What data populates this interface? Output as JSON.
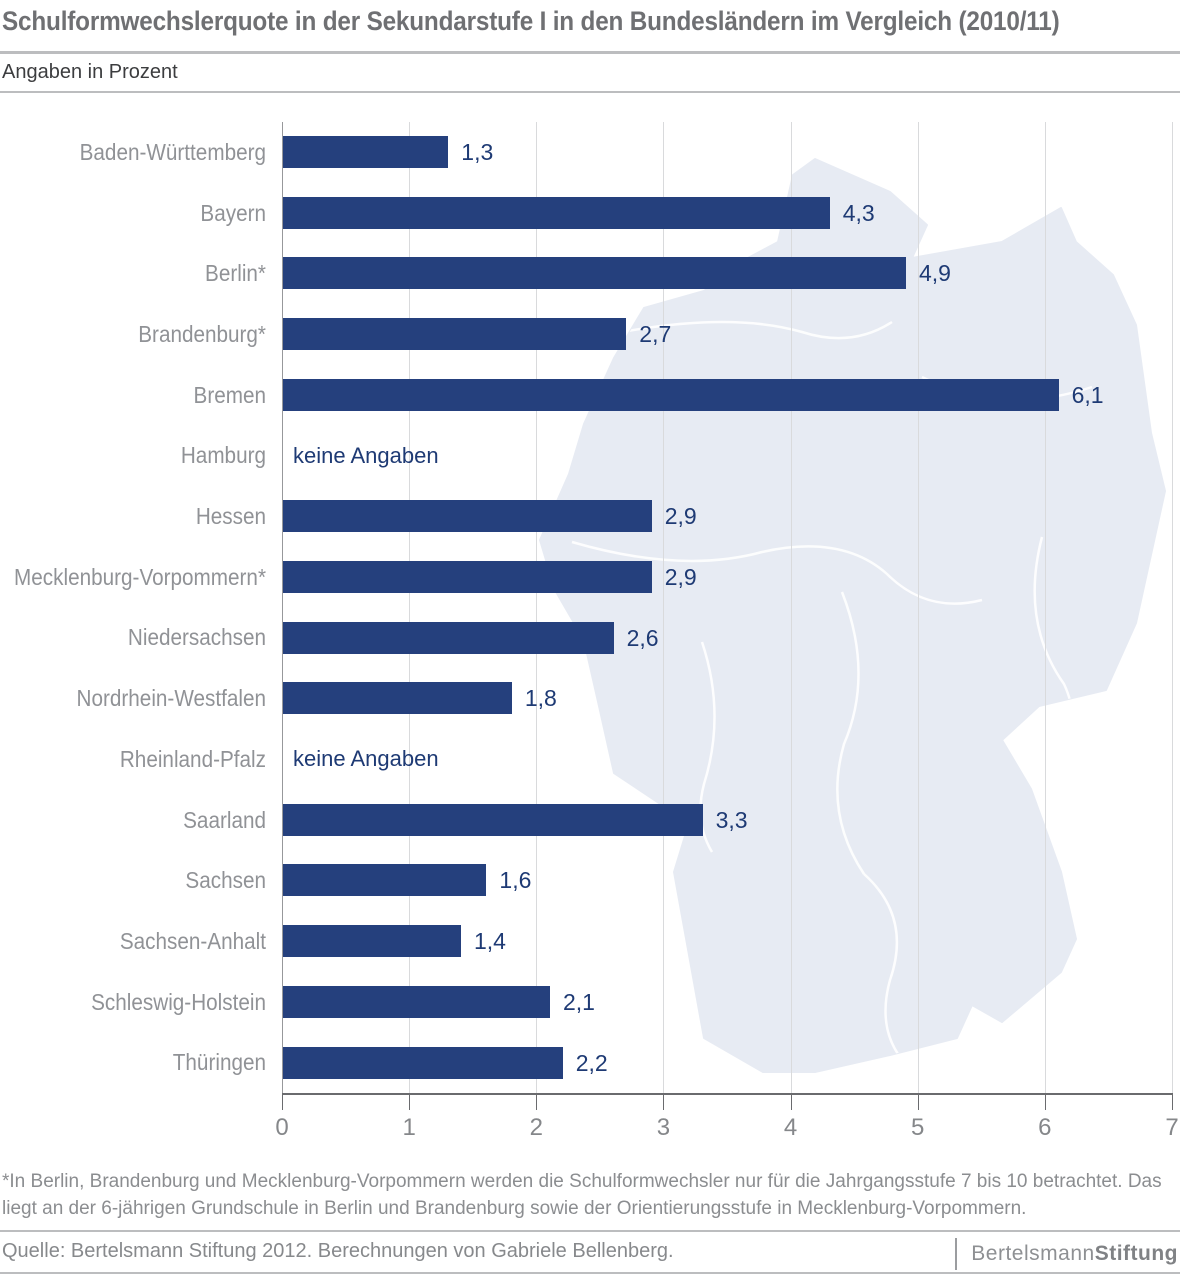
{
  "header": {
    "title": "Schulformwechslerquote in der Sekundarstufe I in den Bundesländern im Vergleich (2010/11)",
    "subtitle": "Angaben in Prozent"
  },
  "chart_data": {
    "type": "bar",
    "orientation": "horizontal",
    "title": "Schulformwechslerquote in der Sekundarstufe I in den Bundesländern im Vergleich (2010/11)",
    "units": "Prozent",
    "categories": [
      "Baden-Württemberg",
      "Bayern",
      "Berlin*",
      "Brandenburg*",
      "Bremen",
      "Hamburg",
      "Hessen",
      "Mecklenburg-Vorpommern*",
      "Niedersachsen",
      "Nordrhein-Westfalen",
      "Rheinland-Pfalz",
      "Saarland",
      "Sachsen",
      "Sachsen-Anhalt",
      "Schleswig-Holstein",
      "Thüringen"
    ],
    "values": [
      1.3,
      4.3,
      4.9,
      2.7,
      6.1,
      null,
      2.9,
      2.9,
      2.6,
      1.8,
      null,
      3.3,
      1.6,
      1.4,
      2.1,
      2.2
    ],
    "value_labels": [
      "1,3",
      "4,3",
      "4,9",
      "2,7",
      "6,1",
      "keine Angaben",
      "2,9",
      "2,9",
      "2,6",
      "1,8",
      "keine Angaben",
      "3,3",
      "1,6",
      "1,4",
      "2,1",
      "2,2"
    ],
    "no_data_label": "keine Angaben",
    "xlim": [
      0,
      7
    ],
    "x_ticks": [
      "0",
      "1",
      "2",
      "3",
      "4",
      "5",
      "6",
      "7"
    ],
    "grid": true,
    "legend": null,
    "background": "Germany map silhouette",
    "colors": {
      "bar": "#25407d",
      "value_text": "#1e3a74",
      "category_text": "#909296",
      "map_fill": "#e7ebf3",
      "map_border": "#ffffff",
      "gridline": "#d9dadc"
    }
  },
  "footnote": "*In Berlin, Brandenburg und Mecklenburg-Vorpommern werden die Schulformwechsler nur für die Jahrgangsstufe 7 bis 10 betrachtet. Das liegt an der 6-jährigen Grundschule in Berlin und Brandenburg sowie der Orientierungsstufe in Mecklenburg-Vorpommern.",
  "source": "Quelle: Bertelsmann Stiftung 2012. Berechnungen von Gabriele Bellenberg.",
  "logo": {
    "part1": "Bertelsmann",
    "part2": "Stiftung"
  }
}
